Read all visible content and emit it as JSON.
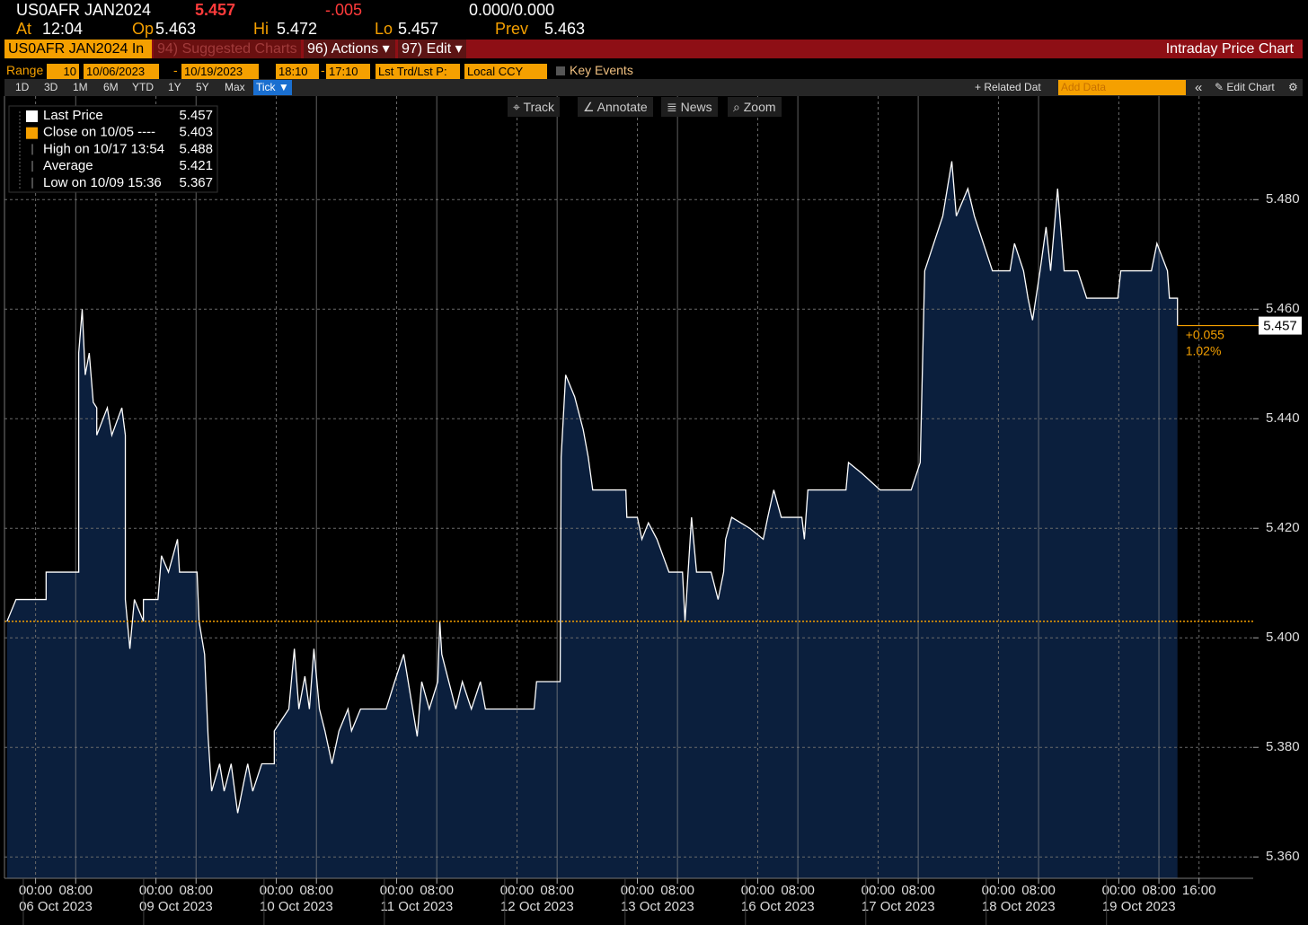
{
  "header": {
    "ticker": "US0AFR JAN2024",
    "last": "5.457",
    "change": "-.005",
    "bid_ask": "0.000/0.000",
    "at_label": "At",
    "at": "12:04",
    "op_label": "Op",
    "op": "5.463",
    "hi_label": "Hi",
    "hi": "5.472",
    "lo_label": "Lo",
    "lo": "5.457",
    "prev_label": "Prev",
    "prev": "5.463"
  },
  "toolbar": {
    "security": "US0AFR JAN2024 In",
    "suggested": "94) Suggested Charts",
    "actions": "96) Actions ▾",
    "edit": "97) Edit ▾",
    "title": "Intraday Price Chart"
  },
  "range_bar": {
    "range_label": "Range",
    "count": "10",
    "start": "10/06/2023",
    "dash": "-",
    "end": "10/19/2023",
    "time_start": "18:10",
    "time_sep": "-",
    "time_end": "17:10",
    "mode": "Lst Trd/Lst P:",
    "ccy": "Local CCY",
    "key_events": "Key Events"
  },
  "period_bar": {
    "periods": [
      "1D",
      "3D",
      "1M",
      "6M",
      "YTD",
      "1Y",
      "5Y",
      "Max",
      "Tick ▼"
    ],
    "related": "+ Related Dat",
    "add_data": "Add Data",
    "collapse": "«",
    "edit_chart": "✎ Edit Chart",
    "settings": "⚙"
  },
  "chart_tools": [
    "Track",
    "Annotate",
    "News",
    "Zoom"
  ],
  "chart_data": {
    "type": "area",
    "x": [
      -5.7,
      -3.9,
      2.1,
      2.1,
      8.6,
      8.6,
      9.3,
      9.9,
      10.7,
      11.5,
      12.2,
      12.2,
      14.3,
      15.2,
      17.2,
      17.9,
      17.9,
      18.8,
      19.7,
      21.5,
      21.5,
      24.4,
      25.1,
      26.5,
      28.3,
      28.7,
      32.2,
      32.6,
      33.7,
      34.4,
      35.1,
      36.7,
      37.6,
      39.0,
      40.3,
      41.6,
      42.3,
      43.3,
      45.1,
      47.6,
      47.6,
      50.5,
      51.6,
      52.5,
      53.7,
      54.6,
      55.5,
      56.6,
      57.7,
      59.1,
      60.5,
      62.3,
      63.0,
      64.8,
      66.3,
      69.9,
      71.6,
      73.4,
      74.3,
      76.1,
      77.0,
      78.5,
      80.2,
      80.6,
      81.0,
      82.4,
      83.8,
      85.1,
      86.9,
      88.7,
      89.7,
      99.4,
      99.9,
      104.6,
      104.8,
      105.7,
      107.5,
      109.2,
      110.2,
      111.1,
      117.7,
      117.9,
      120.0,
      120.9,
      122.2,
      123.9,
      126.3,
      129.0,
      129.5,
      130.8,
      131.8,
      134.7,
      136.1,
      137.2,
      137.6,
      138.8,
      142.4,
      145.1,
      146.0,
      147.2,
      148.7,
      152.8,
      153.3,
      154.0,
      161.6,
      162.1,
      164.8,
      168.4,
      174.6,
      176.4,
      177.3,
      179.1,
      180.9,
      182.7,
      183.6,
      185.9,
      187.2,
      189.0,
      190.8,
      194.3,
      195.2,
      197.0,
      197.9,
      198.8,
      200.3,
      201.5,
      202.4,
      203.8,
      205.1,
      207.8,
      209.6,
      215.8,
      216.4,
      222.5,
      223.6,
      225.7,
      226.1,
      227.7,
      227.7
    ],
    "series": [
      {
        "name": "Last Price",
        "color": "#ffffff",
        "fill": "#0b1f3d",
        "values": [
          5.403,
          5.407,
          5.407,
          5.412,
          5.412,
          5.452,
          5.46,
          5.448,
          5.452,
          5.443,
          5.442,
          5.437,
          5.442,
          5.437,
          5.442,
          5.437,
          5.407,
          5.398,
          5.407,
          5.403,
          5.407,
          5.407,
          5.415,
          5.412,
          5.418,
          5.412,
          5.412,
          5.403,
          5.397,
          5.382,
          5.372,
          5.377,
          5.372,
          5.377,
          5.368,
          5.374,
          5.377,
          5.372,
          5.377,
          5.377,
          5.383,
          5.387,
          5.398,
          5.387,
          5.393,
          5.387,
          5.398,
          5.387,
          5.383,
          5.377,
          5.383,
          5.387,
          5.383,
          5.387,
          5.387,
          5.387,
          5.392,
          5.397,
          5.392,
          5.382,
          5.392,
          5.387,
          5.392,
          5.403,
          5.397,
          5.392,
          5.387,
          5.392,
          5.387,
          5.392,
          5.387,
          5.387,
          5.392,
          5.392,
          5.433,
          5.448,
          5.444,
          5.438,
          5.433,
          5.427,
          5.427,
          5.422,
          5.422,
          5.418,
          5.421,
          5.418,
          5.412,
          5.412,
          5.403,
          5.422,
          5.412,
          5.412,
          5.407,
          5.412,
          5.418,
          5.422,
          5.42,
          5.418,
          5.422,
          5.427,
          5.422,
          5.422,
          5.418,
          5.427,
          5.427,
          5.432,
          5.43,
          5.427,
          5.427,
          5.432,
          5.467,
          5.472,
          5.477,
          5.487,
          5.477,
          5.482,
          5.477,
          5.472,
          5.467,
          5.467,
          5.472,
          5.467,
          5.462,
          5.458,
          5.467,
          5.475,
          5.467,
          5.482,
          5.467,
          5.467,
          5.462,
          5.462,
          5.467,
          5.467,
          5.472,
          5.467,
          5.462,
          5.462,
          5.457
        ]
      }
    ],
    "last_value": 5.457,
    "reference_stats": [
      {
        "label": "Close on 10/05 ----",
        "value": 5.403,
        "color": "#f5a000"
      },
      {
        "label": "High on 10/17 13:54",
        "value": 5.488
      },
      {
        "label": "Average",
        "value": 5.421
      },
      {
        "label": "Low on 10/09 15:36",
        "value": 5.367
      }
    ],
    "change_label": "+0.055",
    "change_pct_label": "1.02%",
    "xlim": [
      -6.2,
      242.8
    ],
    "ylim": [
      5.3561,
      5.4989
    ],
    "yticks": [
      {
        "value": 5.36,
        "label": "5.360"
      },
      {
        "value": 5.38,
        "label": "5.380"
      },
      {
        "value": 5.4,
        "label": "5.400"
      },
      {
        "value": 5.42,
        "label": "5.420"
      },
      {
        "value": 5.44,
        "label": "5.440"
      },
      {
        "value": 5.46,
        "label": "5.460"
      },
      {
        "value": 5.48,
        "label": "5.480"
      }
    ],
    "xticks": [
      {
        "value": 0,
        "label": "00:00"
      },
      {
        "value": 8,
        "label": "08:00"
      },
      {
        "value": 24,
        "label": "00:00"
      },
      {
        "value": 32,
        "label": "08:00"
      },
      {
        "value": 48,
        "label": "00:00"
      },
      {
        "value": 56,
        "label": "08:00"
      },
      {
        "value": 72,
        "label": "00:00"
      },
      {
        "value": 80,
        "label": "08:00"
      },
      {
        "value": 96,
        "label": "00:00"
      },
      {
        "value": 104,
        "label": "08:00"
      },
      {
        "value": 120,
        "label": "00:00"
      },
      {
        "value": 128,
        "label": "08:00"
      },
      {
        "value": 144,
        "label": "00:00"
      },
      {
        "value": 152,
        "label": "08:00"
      },
      {
        "value": 168,
        "label": "00:00"
      },
      {
        "value": 176,
        "label": "08:00"
      },
      {
        "value": 192,
        "label": "00:00"
      },
      {
        "value": 200,
        "label": "08:00"
      },
      {
        "value": 216,
        "label": "00:00"
      },
      {
        "value": 224,
        "label": "08:00"
      },
      {
        "value": 232,
        "label": "16:00"
      }
    ],
    "x_date_labels": [
      {
        "value": 4,
        "label": "06 Oct 2023"
      },
      {
        "value": 28,
        "label": "09 Oct 2023"
      },
      {
        "value": 52,
        "label": "10 Oct 2023"
      },
      {
        "value": 76,
        "label": "11 Oct 2023"
      },
      {
        "value": 100,
        "label": "12 Oct 2023"
      },
      {
        "value": 124,
        "label": "13 Oct 2023"
      },
      {
        "value": 148,
        "label": "16 Oct 2023"
      },
      {
        "value": 172,
        "label": "17 Oct 2023"
      },
      {
        "value": 196,
        "label": "18 Oct 2023"
      },
      {
        "value": 220,
        "label": "19 Oct 2023"
      }
    ],
    "grid": true
  }
}
